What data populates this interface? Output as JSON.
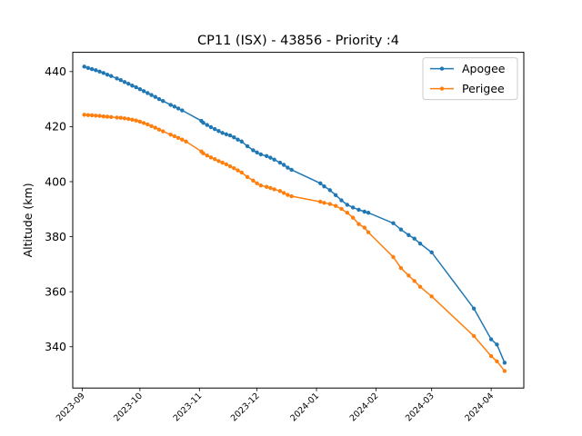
{
  "chart_data": {
    "type": "line",
    "title": "CP11 (ISX) - 43856 - Priority :4",
    "xlabel": "",
    "ylabel": "Altitude (km)",
    "xlim": [
      "2023-08-27",
      "2024-04-18"
    ],
    "ylim": [
      325,
      447
    ],
    "x_ticks": [
      "2023-09",
      "2023-10",
      "2023-11",
      "2023-12",
      "2024-01",
      "2024-02",
      "2024-03",
      "2024-04"
    ],
    "y_ticks": [
      340,
      360,
      380,
      400,
      420,
      440
    ],
    "grid": false,
    "legend_position": "top-right",
    "colors": {
      "Apogee": "#1f77b4",
      "Perigee": "#ff7f0e"
    },
    "series": [
      {
        "name": "Apogee",
        "points": [
          [
            "2023-09-02",
            441.8
          ],
          [
            "2023-09-04",
            441.3
          ],
          [
            "2023-09-06",
            440.9
          ],
          [
            "2023-09-08",
            440.5
          ],
          [
            "2023-09-10",
            440.0
          ],
          [
            "2023-09-12",
            439.5
          ],
          [
            "2023-09-14",
            438.9
          ],
          [
            "2023-09-16",
            438.4
          ],
          [
            "2023-09-19",
            437.5
          ],
          [
            "2023-09-21",
            436.9
          ],
          [
            "2023-09-23",
            436.2
          ],
          [
            "2023-09-25",
            435.6
          ],
          [
            "2023-09-27",
            434.9
          ],
          [
            "2023-09-29",
            434.3
          ],
          [
            "2023-10-01",
            433.6
          ],
          [
            "2023-10-03",
            432.9
          ],
          [
            "2023-10-05",
            432.2
          ],
          [
            "2023-10-07",
            431.5
          ],
          [
            "2023-10-09",
            430.8
          ],
          [
            "2023-10-11",
            430.0
          ],
          [
            "2023-10-13",
            429.3
          ],
          [
            "2023-10-17",
            427.9
          ],
          [
            "2023-10-19",
            427.3
          ],
          [
            "2023-10-21",
            426.6
          ],
          [
            "2023-10-23",
            425.9
          ],
          [
            "2023-11-02",
            422.1
          ],
          [
            "2023-11-03",
            421.4
          ],
          [
            "2023-11-05",
            420.6
          ],
          [
            "2023-11-07",
            419.8
          ],
          [
            "2023-11-09",
            419.1
          ],
          [
            "2023-11-11",
            418.4
          ],
          [
            "2023-11-13",
            417.7
          ],
          [
            "2023-11-15",
            417.2
          ],
          [
            "2023-11-17",
            416.8
          ],
          [
            "2023-11-19",
            416.1
          ],
          [
            "2023-11-21",
            415.3
          ],
          [
            "2023-11-23",
            414.6
          ],
          [
            "2023-11-26",
            412.9
          ],
          [
            "2023-11-29",
            411.4
          ],
          [
            "2023-12-01",
            410.6
          ],
          [
            "2023-12-03",
            409.9
          ],
          [
            "2023-12-06",
            409.3
          ],
          [
            "2023-12-08",
            408.7
          ],
          [
            "2023-12-10",
            408.0
          ],
          [
            "2023-12-13",
            406.9
          ],
          [
            "2023-12-15",
            406.1
          ],
          [
            "2023-12-17",
            405.1
          ],
          [
            "2023-12-19",
            404.3
          ],
          [
            "2024-01-03",
            399.4
          ],
          [
            "2024-01-05",
            398.3
          ],
          [
            "2024-01-08",
            396.9
          ],
          [
            "2024-01-11",
            395.1
          ],
          [
            "2024-01-14",
            393.2
          ],
          [
            "2024-01-17",
            391.6
          ],
          [
            "2024-01-20",
            390.6
          ],
          [
            "2024-01-23",
            389.8
          ],
          [
            "2024-01-26",
            389.1
          ],
          [
            "2024-01-28",
            388.7
          ],
          [
            "2024-02-10",
            384.9
          ],
          [
            "2024-02-14",
            382.6
          ],
          [
            "2024-02-18",
            380.6
          ],
          [
            "2024-02-21",
            379.3
          ],
          [
            "2024-02-24",
            377.5
          ],
          [
            "2024-03-01",
            374.3
          ],
          [
            "2024-03-23",
            353.9
          ],
          [
            "2024-04-01",
            342.7
          ],
          [
            "2024-04-04",
            340.8
          ],
          [
            "2024-04-08",
            334.2
          ]
        ]
      },
      {
        "name": "Perigee",
        "points": [
          [
            "2023-09-02",
            424.3
          ],
          [
            "2023-09-04",
            424.2
          ],
          [
            "2023-09-06",
            424.1
          ],
          [
            "2023-09-08",
            424.0
          ],
          [
            "2023-09-10",
            423.9
          ],
          [
            "2023-09-12",
            423.7
          ],
          [
            "2023-09-14",
            423.6
          ],
          [
            "2023-09-16",
            423.5
          ],
          [
            "2023-09-19",
            423.3
          ],
          [
            "2023-09-21",
            423.2
          ],
          [
            "2023-09-23",
            423.0
          ],
          [
            "2023-09-25",
            422.8
          ],
          [
            "2023-09-27",
            422.5
          ],
          [
            "2023-09-29",
            422.2
          ],
          [
            "2023-10-01",
            421.8
          ],
          [
            "2023-10-03",
            421.3
          ],
          [
            "2023-10-05",
            420.8
          ],
          [
            "2023-10-07",
            420.2
          ],
          [
            "2023-10-09",
            419.6
          ],
          [
            "2023-10-11",
            418.9
          ],
          [
            "2023-10-13",
            418.3
          ],
          [
            "2023-10-17",
            417.1
          ],
          [
            "2023-10-19",
            416.5
          ],
          [
            "2023-10-21",
            415.9
          ],
          [
            "2023-10-23",
            415.3
          ],
          [
            "2023-10-25",
            414.6
          ],
          [
            "2023-11-02",
            411.0
          ],
          [
            "2023-11-03",
            410.3
          ],
          [
            "2023-11-05",
            409.5
          ],
          [
            "2023-11-07",
            408.8
          ],
          [
            "2023-11-09",
            408.2
          ],
          [
            "2023-11-11",
            407.5
          ],
          [
            "2023-11-13",
            406.9
          ],
          [
            "2023-11-15",
            406.3
          ],
          [
            "2023-11-17",
            405.6
          ],
          [
            "2023-11-19",
            404.9
          ],
          [
            "2023-11-21",
            404.1
          ],
          [
            "2023-11-23",
            403.3
          ],
          [
            "2023-11-26",
            401.7
          ],
          [
            "2023-11-29",
            400.4
          ],
          [
            "2023-12-01",
            399.4
          ],
          [
            "2023-12-03",
            398.6
          ],
          [
            "2023-12-06",
            398.1
          ],
          [
            "2023-12-08",
            397.7
          ],
          [
            "2023-12-10",
            397.2
          ],
          [
            "2023-12-13",
            396.6
          ],
          [
            "2023-12-15",
            395.9
          ],
          [
            "2023-12-17",
            395.2
          ],
          [
            "2023-12-19",
            394.7
          ],
          [
            "2024-01-03",
            392.7
          ],
          [
            "2024-01-05",
            392.3
          ],
          [
            "2024-01-08",
            391.9
          ],
          [
            "2024-01-11",
            391.2
          ],
          [
            "2024-01-14",
            390.1
          ],
          [
            "2024-01-17",
            388.7
          ],
          [
            "2024-01-20",
            386.9
          ],
          [
            "2024-01-23",
            384.6
          ],
          [
            "2024-01-26",
            383.3
          ],
          [
            "2024-01-28",
            381.6
          ],
          [
            "2024-02-10",
            372.6
          ],
          [
            "2024-02-14",
            368.6
          ],
          [
            "2024-02-18",
            365.9
          ],
          [
            "2024-02-21",
            363.9
          ],
          [
            "2024-02-24",
            361.8
          ],
          [
            "2024-03-01",
            358.3
          ],
          [
            "2024-03-23",
            343.9
          ],
          [
            "2024-04-01",
            336.6
          ],
          [
            "2024-04-04",
            334.7
          ],
          [
            "2024-04-08",
            331.2
          ]
        ]
      }
    ]
  }
}
